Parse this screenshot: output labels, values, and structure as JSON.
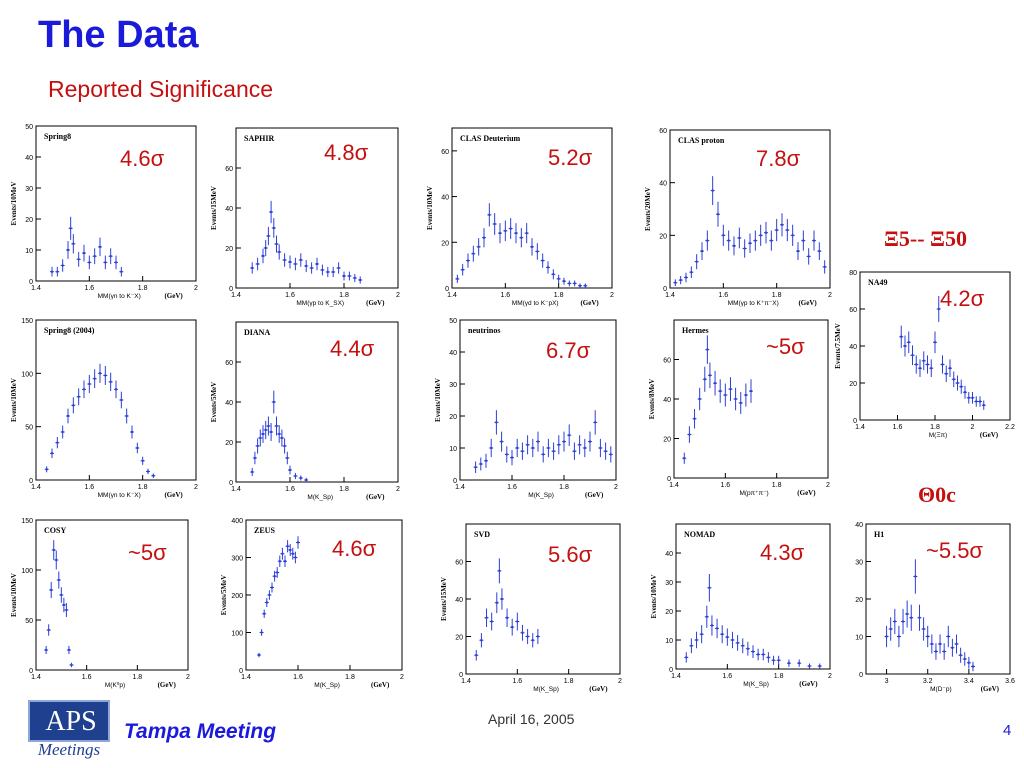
{
  "title": "The Data",
  "subtitle": "Reported Significance",
  "xi_label": "Ξ5-- Ξ50",
  "theta_label": "Θ0c",
  "footer": {
    "date": "April 16, 2005",
    "meeting": "Tampa Meeting",
    "page": "4",
    "logo_text": "APS",
    "logo_sub": "Meetings"
  },
  "colors": {
    "title": "#1a1adb",
    "significance": "#c41010",
    "data": "#2c3fd6"
  },
  "chart_data": [
    {
      "type": "scatter",
      "title": "Spring8",
      "significance": "4.6σ",
      "xlabel": "MM(γn to K⁻X)",
      "unit": "(GeV)",
      "ylabel": "Events/10MeV",
      "xlim": [
        1.4,
        2
      ],
      "ylim": [
        0,
        50
      ],
      "xticks": [
        1.4,
        1.6,
        1.8,
        2
      ],
      "yticks": [
        0,
        10,
        20,
        30,
        40,
        50
      ],
      "x": [
        1.46,
        1.48,
        1.5,
        1.52,
        1.53,
        1.54,
        1.56,
        1.58,
        1.6,
        1.62,
        1.64,
        1.66,
        1.68,
        1.7,
        1.72
      ],
      "values": [
        3,
        3,
        5,
        10,
        17,
        12,
        7,
        9,
        6,
        8,
        11,
        6,
        8,
        6,
        3
      ]
    },
    {
      "type": "scatter",
      "title": "SAPHIR",
      "significance": "4.8σ",
      "xlabel": "MM(γp to K_SX)",
      "unit": "(GeV)",
      "ylabel": "Events/15MeV",
      "xlim": [
        1.4,
        2
      ],
      "ylim": [
        0,
        80
      ],
      "xticks": [
        1.4,
        1.6,
        1.8,
        2
      ],
      "yticks": [
        0,
        20,
        40,
        60
      ],
      "x": [
        1.46,
        1.48,
        1.5,
        1.51,
        1.52,
        1.53,
        1.54,
        1.55,
        1.56,
        1.58,
        1.6,
        1.62,
        1.64,
        1.66,
        1.68,
        1.7,
        1.72,
        1.74,
        1.76,
        1.78,
        1.8,
        1.82,
        1.84,
        1.86
      ],
      "values": [
        10,
        12,
        16,
        20,
        26,
        38,
        30,
        22,
        18,
        14,
        13,
        12,
        14,
        11,
        10,
        12,
        9,
        8,
        8,
        10,
        6,
        6,
        5,
        4
      ]
    },
    {
      "type": "scatter",
      "title": "CLAS Deuterium",
      "significance": "5.2σ",
      "xlabel": "MM(γd to K⁻pX)",
      "unit": "(GeV)",
      "ylabel": "Events/10MeV",
      "xlim": [
        1.4,
        2
      ],
      "ylim": [
        0,
        70
      ],
      "xticks": [
        1.4,
        1.6,
        1.8,
        2
      ],
      "yticks": [
        0,
        20,
        40,
        60
      ],
      "x": [
        1.42,
        1.44,
        1.46,
        1.48,
        1.5,
        1.52,
        1.54,
        1.56,
        1.58,
        1.6,
        1.62,
        1.64,
        1.66,
        1.68,
        1.7,
        1.72,
        1.74,
        1.76,
        1.78,
        1.8,
        1.82,
        1.84,
        1.86,
        1.88,
        1.9
      ],
      "values": [
        4,
        8,
        12,
        15,
        18,
        22,
        32,
        28,
        24,
        25,
        26,
        24,
        22,
        24,
        18,
        16,
        12,
        9,
        6,
        4,
        3,
        2,
        2,
        1,
        1
      ]
    },
    {
      "type": "scatter",
      "title": "CLAS proton",
      "significance": "7.8σ",
      "xlabel": "MM(γp to K⁺π⁻X)",
      "unit": "(GeV)",
      "ylabel": "Events/20MeV",
      "xlim": [
        1.4,
        2
      ],
      "ylim": [
        0,
        60
      ],
      "xticks": [
        1.4,
        1.6,
        1.8,
        2
      ],
      "yticks": [
        0,
        20,
        40,
        60
      ],
      "x": [
        1.42,
        1.44,
        1.46,
        1.48,
        1.5,
        1.52,
        1.54,
        1.56,
        1.58,
        1.6,
        1.62,
        1.64,
        1.66,
        1.68,
        1.7,
        1.72,
        1.74,
        1.76,
        1.78,
        1.8,
        1.82,
        1.84,
        1.86,
        1.88,
        1.9,
        1.92,
        1.94,
        1.96,
        1.98
      ],
      "values": [
        2,
        3,
        4,
        6,
        10,
        14,
        18,
        37,
        28,
        20,
        18,
        16,
        19,
        15,
        17,
        18,
        20,
        21,
        18,
        22,
        24,
        22,
        20,
        14,
        18,
        12,
        18,
        14,
        8
      ]
    },
    {
      "type": "scatter",
      "title": "Spring8 (2004)",
      "significance": "",
      "xlabel": "MM(γn to K⁻X)",
      "unit": "(GeV)",
      "ylabel": "Events/10MeV",
      "xlim": [
        1.4,
        2
      ],
      "ylim": [
        0,
        150
      ],
      "xticks": [
        1.4,
        1.6,
        1.8,
        2
      ],
      "yticks": [
        0,
        50,
        100,
        150
      ],
      "x": [
        1.44,
        1.46,
        1.48,
        1.5,
        1.52,
        1.54,
        1.56,
        1.58,
        1.6,
        1.62,
        1.64,
        1.66,
        1.68,
        1.7,
        1.72,
        1.74,
        1.76,
        1.78,
        1.8,
        1.82,
        1.84
      ],
      "values": [
        10,
        25,
        35,
        45,
        60,
        70,
        78,
        85,
        90,
        95,
        100,
        98,
        92,
        85,
        75,
        60,
        45,
        30,
        18,
        8,
        4
      ]
    },
    {
      "type": "scatter",
      "title": "DIANA",
      "significance": "4.4σ",
      "xlabel": "M(K_Sp)",
      "unit": "(GeV)",
      "ylabel": "Events/5MeV",
      "xlim": [
        1.4,
        2
      ],
      "ylim": [
        0,
        80
      ],
      "xticks": [
        1.4,
        1.6,
        1.8,
        2
      ],
      "yticks": [
        0,
        20,
        40,
        60
      ],
      "x": [
        1.46,
        1.47,
        1.48,
        1.49,
        1.5,
        1.51,
        1.52,
        1.53,
        1.54,
        1.55,
        1.56,
        1.57,
        1.58,
        1.59,
        1.6,
        1.62,
        1.64,
        1.66
      ],
      "values": [
        5,
        12,
        18,
        22,
        24,
        26,
        28,
        25,
        40,
        28,
        24,
        22,
        18,
        12,
        6,
        3,
        2,
        1
      ]
    },
    {
      "type": "scatter",
      "title": "neutrinos",
      "significance": "6.7σ",
      "xlabel": "M(K_Sp)",
      "unit": "(GeV)",
      "ylabel": "Events/10MeV",
      "xlim": [
        1.4,
        2
      ],
      "ylim": [
        0,
        50
      ],
      "xticks": [
        1.4,
        1.6,
        1.8,
        2
      ],
      "yticks": [
        0,
        10,
        20,
        30,
        40,
        50
      ],
      "x": [
        1.46,
        1.48,
        1.5,
        1.52,
        1.54,
        1.56,
        1.58,
        1.6,
        1.62,
        1.64,
        1.66,
        1.68,
        1.7,
        1.72,
        1.74,
        1.76,
        1.78,
        1.8,
        1.82,
        1.84,
        1.86,
        1.88,
        1.9,
        1.92,
        1.94,
        1.96,
        1.98
      ],
      "values": [
        4,
        5,
        6,
        10,
        18,
        12,
        8,
        7,
        10,
        9,
        11,
        10,
        12,
        8,
        10,
        9,
        11,
        12,
        14,
        9,
        11,
        10,
        12,
        18,
        10,
        9,
        8
      ]
    },
    {
      "type": "scatter",
      "title": "Hermes",
      "significance": "~5σ",
      "xlabel": "M(pπ⁺π⁻)",
      "unit": "(GeV)",
      "ylabel": "Events/8MeV",
      "xlim": [
        1.4,
        2
      ],
      "ylim": [
        0,
        80
      ],
      "xticks": [
        1.4,
        1.6,
        1.8,
        2
      ],
      "yticks": [
        0,
        20,
        40,
        60
      ],
      "x": [
        1.44,
        1.46,
        1.48,
        1.5,
        1.52,
        1.53,
        1.54,
        1.56,
        1.58,
        1.6,
        1.62,
        1.64,
        1.66,
        1.68,
        1.7
      ],
      "values": [
        10,
        22,
        30,
        40,
        50,
        65,
        52,
        48,
        44,
        42,
        45,
        40,
        38,
        42,
        44
      ]
    },
    {
      "type": "scatter",
      "title": "NA49",
      "significance": "4.2σ",
      "xlabel": "M(Ξπ)",
      "unit": "(GeV)",
      "ylabel": "Events/7.5MeV",
      "xlim": [
        1.4,
        2.2
      ],
      "ylim": [
        0,
        80
      ],
      "xticks": [
        1.4,
        1.6,
        1.8,
        2,
        2.2
      ],
      "yticks": [
        0,
        20,
        40,
        60,
        80
      ],
      "x": [
        1.62,
        1.64,
        1.66,
        1.68,
        1.7,
        1.72,
        1.74,
        1.76,
        1.78,
        1.8,
        1.82,
        1.84,
        1.86,
        1.88,
        1.9,
        1.92,
        1.94,
        1.96,
        1.98,
        2.0,
        2.02,
        2.04,
        2.06
      ],
      "values": [
        45,
        40,
        42,
        35,
        30,
        28,
        32,
        30,
        28,
        42,
        60,
        30,
        25,
        28,
        22,
        20,
        18,
        15,
        12,
        12,
        10,
        10,
        8
      ]
    },
    {
      "type": "scatter",
      "title": "COSY",
      "significance": "~5σ",
      "xlabel": "M(K⁰p)",
      "unit": "(GeV)",
      "ylabel": "Events/10MeV",
      "xlim": [
        1.4,
        2
      ],
      "ylim": [
        0,
        150
      ],
      "xticks": [
        1.4,
        1.6,
        1.8,
        2
      ],
      "yticks": [
        0,
        50,
        100,
        150
      ],
      "x": [
        1.44,
        1.45,
        1.46,
        1.47,
        1.48,
        1.49,
        1.5,
        1.51,
        1.52,
        1.53,
        1.54
      ],
      "values": [
        20,
        40,
        80,
        120,
        110,
        90,
        75,
        65,
        60,
        20,
        5
      ]
    },
    {
      "type": "scatter",
      "title": "ZEUS",
      "significance": "4.6σ",
      "xlabel": "M(K_Sp)",
      "unit": "(GeV)",
      "ylabel": "Events/5MeV",
      "xlim": [
        1.4,
        2
      ],
      "ylim": [
        0,
        400
      ],
      "xticks": [
        1.4,
        1.6,
        1.8,
        2
      ],
      "yticks": [
        0,
        100,
        200,
        300,
        400
      ],
      "x": [
        1.45,
        1.46,
        1.47,
        1.48,
        1.49,
        1.5,
        1.51,
        1.52,
        1.53,
        1.54,
        1.55,
        1.56,
        1.57,
        1.58,
        1.59,
        1.6
      ],
      "values": [
        40,
        100,
        150,
        180,
        200,
        220,
        250,
        260,
        290,
        310,
        290,
        330,
        320,
        310,
        300,
        340
      ]
    },
    {
      "type": "scatter",
      "title": "SVD",
      "significance": "5.6σ",
      "xlabel": "M(K_Sp)",
      "unit": "(GeV)",
      "ylabel": "Events/15MeV",
      "xlim": [
        1.4,
        2
      ],
      "ylim": [
        0,
        80
      ],
      "xticks": [
        1.4,
        1.6,
        1.8,
        2
      ],
      "yticks": [
        0,
        20,
        40,
        60
      ],
      "x": [
        1.44,
        1.46,
        1.48,
        1.5,
        1.52,
        1.53,
        1.54,
        1.56,
        1.58,
        1.6,
        1.62,
        1.64,
        1.66,
        1.68
      ],
      "values": [
        10,
        18,
        30,
        28,
        38,
        55,
        40,
        30,
        25,
        28,
        22,
        20,
        18,
        20
      ]
    },
    {
      "type": "scatter",
      "title": "NOMAD",
      "significance": "4.3σ",
      "xlabel": "M(K_Sp)",
      "unit": "(GeV)",
      "ylabel": "Events/10MeV",
      "xlim": [
        1.4,
        2
      ],
      "ylim": [
        0,
        50
      ],
      "xticks": [
        1.4,
        1.6,
        1.8,
        2
      ],
      "yticks": [
        0,
        10,
        20,
        30,
        40
      ],
      "x": [
        1.44,
        1.46,
        1.48,
        1.5,
        1.52,
        1.53,
        1.54,
        1.56,
        1.58,
        1.6,
        1.62,
        1.64,
        1.66,
        1.68,
        1.7,
        1.72,
        1.74,
        1.76,
        1.78,
        1.8,
        1.84,
        1.88,
        1.92,
        1.96
      ],
      "values": [
        4,
        8,
        10,
        12,
        18,
        28,
        15,
        14,
        12,
        11,
        10,
        9,
        8,
        7,
        6,
        5,
        5,
        4,
        3,
        3,
        2,
        2,
        1,
        1
      ]
    },
    {
      "type": "scatter",
      "title": "H1",
      "significance": "~5.5σ",
      "xlabel": "M(D⁻p)",
      "unit": "(GeV)",
      "ylabel": "",
      "xlim": [
        2.9,
        3.6
      ],
      "ylim": [
        0,
        40
      ],
      "xticks": [
        3,
        3.2,
        3.4,
        3.6
      ],
      "yticks": [
        0,
        10,
        20,
        30,
        40
      ],
      "x": [
        3.0,
        3.02,
        3.04,
        3.06,
        3.08,
        3.1,
        3.12,
        3.14,
        3.16,
        3.18,
        3.2,
        3.22,
        3.24,
        3.26,
        3.28,
        3.3,
        3.32,
        3.34,
        3.36,
        3.38,
        3.4,
        3.42
      ],
      "values": [
        10,
        12,
        14,
        10,
        14,
        16,
        15,
        26,
        15,
        12,
        10,
        8,
        6,
        8,
        6,
        10,
        7,
        8,
        5,
        4,
        3,
        2
      ]
    }
  ]
}
